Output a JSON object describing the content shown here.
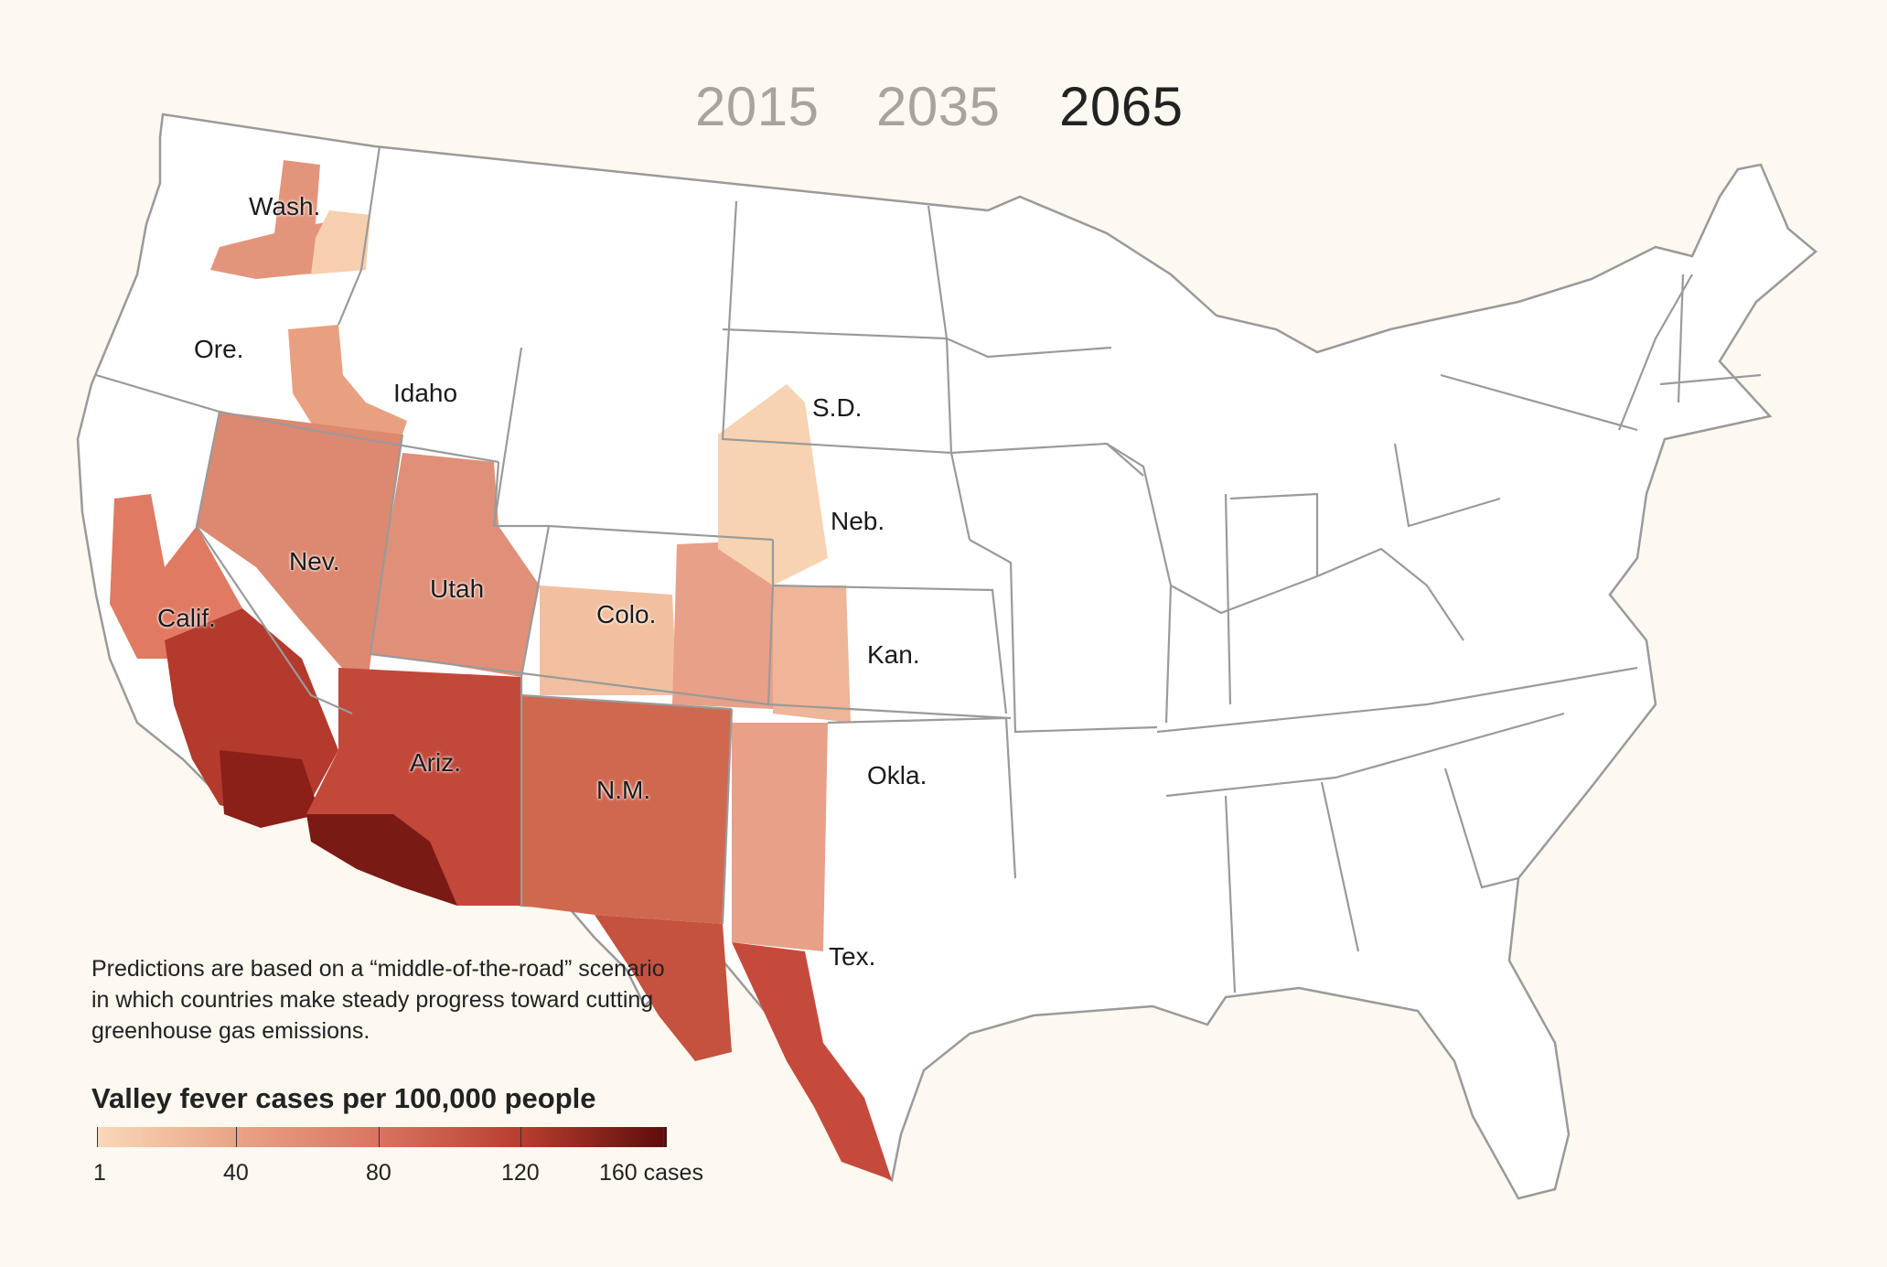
{
  "years": [
    {
      "label": "2015",
      "active": false,
      "color": "#a8a39d"
    },
    {
      "label": "2035",
      "active": false,
      "color": "#a8a39d"
    },
    {
      "label": "2065",
      "active": true,
      "color": "#222222"
    }
  ],
  "states": {
    "wash": "Wash.",
    "ore": "Ore.",
    "idaho": "Idaho",
    "nev": "Nev.",
    "calif": "Calif.",
    "utah": "Utah",
    "colo": "Colo.",
    "ariz": "Ariz.",
    "nm": "N.M.",
    "sd": "S.D.",
    "neb": "Neb.",
    "kan": "Kan.",
    "okla": "Okla.",
    "tex": "Tex."
  },
  "note": "Predictions are based on a “middle-of-the-road” scenario in which countries make steady progress toward cutting greenhouse gas emissions.",
  "legend": {
    "title": "Valley fever cases per 100,000 people",
    "ticks": [
      {
        "value": 1,
        "label": "1"
      },
      {
        "value": 40,
        "label": "40"
      },
      {
        "value": 80,
        "label": "80"
      },
      {
        "value": 120,
        "label": "120"
      },
      {
        "value": 160,
        "label": "160 cases"
      }
    ],
    "min": 1,
    "max": 161,
    "colors": [
      "#f9d8b8",
      "#e9a285",
      "#d87360",
      "#b73c2e",
      "#5c0c0c"
    ]
  }
}
